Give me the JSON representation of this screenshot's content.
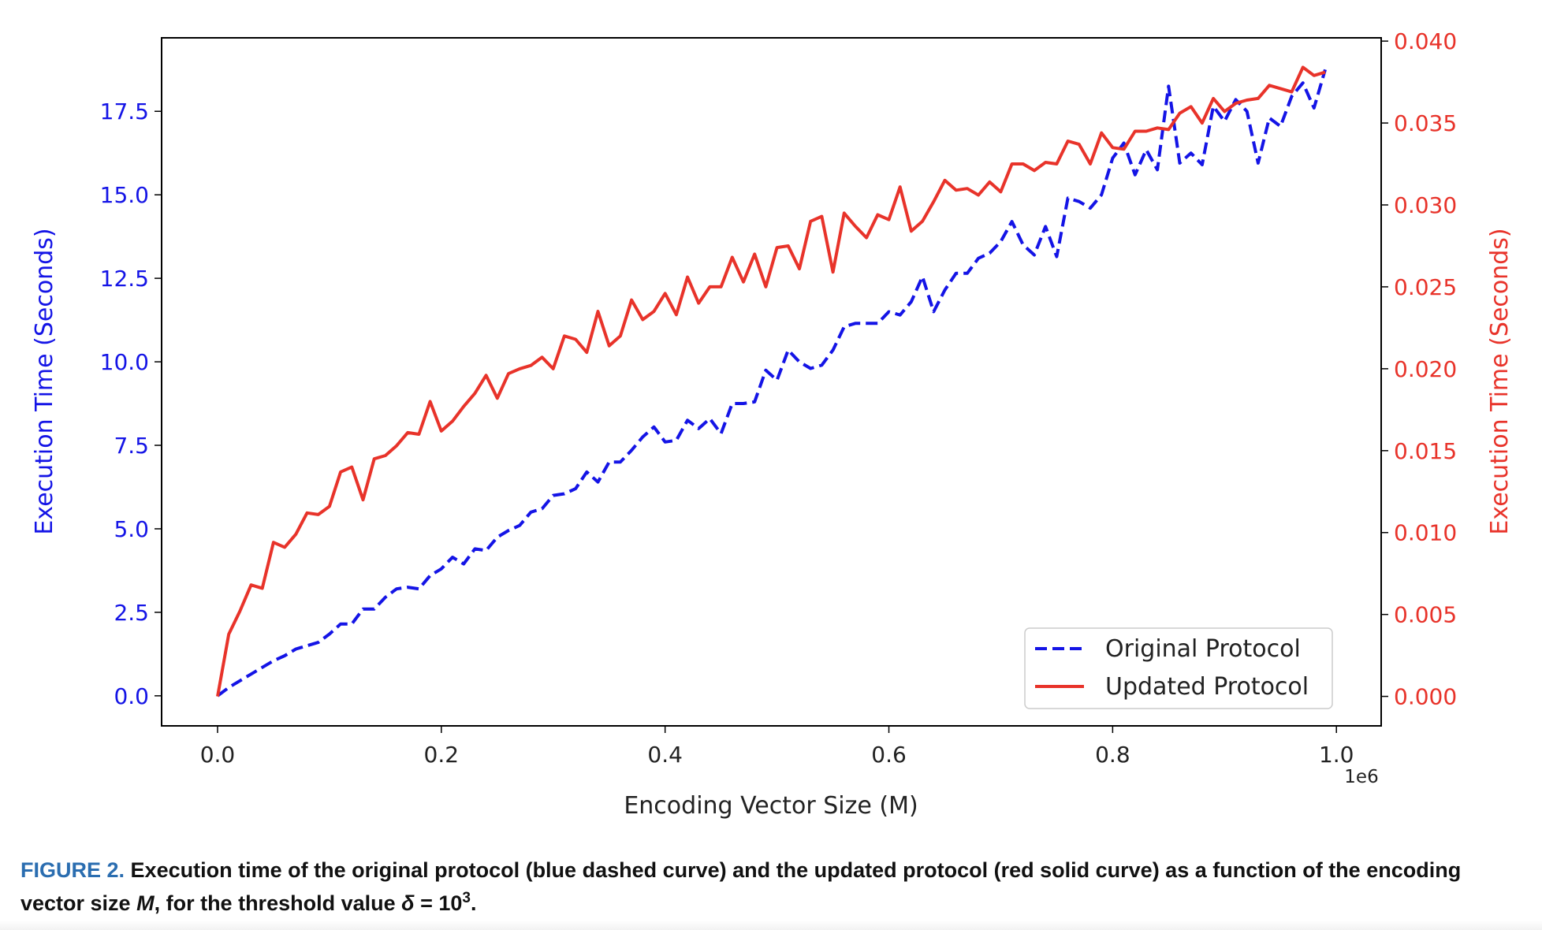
{
  "chart_data": {
    "type": "line",
    "xlabel": "Encoding Vector Size (M)",
    "x_offset_text": "1e6",
    "xlim": [
      -0.05,
      1.04
    ],
    "x_ticks": [
      0.0,
      0.2,
      0.4,
      0.6,
      0.8,
      1.0
    ],
    "x_tick_labels": [
      "0.0",
      "0.2",
      "0.4",
      "0.6",
      "0.8",
      "1.0"
    ],
    "left_axis": {
      "label": "Execution Time (Seconds)",
      "color": "#1414e6",
      "ylim": [
        -0.9,
        19.7
      ],
      "ticks": [
        0.0,
        2.5,
        5.0,
        7.5,
        10.0,
        12.5,
        15.0,
        17.5
      ],
      "tick_labels": [
        "0.0",
        "2.5",
        "5.0",
        "7.5",
        "10.0",
        "12.5",
        "15.0",
        "17.5"
      ]
    },
    "right_axis": {
      "label": "Execution Time (Seconds)",
      "color": "#e8332a",
      "ylim": [
        -0.0018,
        0.0402
      ],
      "ticks": [
        0.0,
        0.005,
        0.01,
        0.015,
        0.02,
        0.025,
        0.03,
        0.035,
        0.04
      ],
      "tick_labels": [
        "0.000",
        "0.005",
        "0.010",
        "0.015",
        "0.020",
        "0.025",
        "0.030",
        "0.035",
        "0.040"
      ]
    },
    "legend_position": "lower-right",
    "grid": false,
    "series": [
      {
        "name": "Original Protocol",
        "axis": "left",
        "color": "#1414e6",
        "style": "dashed",
        "x": [
          0.0,
          0.01,
          0.02,
          0.03,
          0.04,
          0.05,
          0.06,
          0.07,
          0.08,
          0.09,
          0.1,
          0.11,
          0.12,
          0.13,
          0.14,
          0.15,
          0.16,
          0.17,
          0.18,
          0.19,
          0.2,
          0.21,
          0.22,
          0.23,
          0.24,
          0.25,
          0.26,
          0.27,
          0.28,
          0.29,
          0.3,
          0.31,
          0.32,
          0.33,
          0.34,
          0.35,
          0.36,
          0.37,
          0.38,
          0.39,
          0.4,
          0.41,
          0.42,
          0.43,
          0.44,
          0.45,
          0.46,
          0.47,
          0.48,
          0.49,
          0.5,
          0.51,
          0.52,
          0.53,
          0.54,
          0.55,
          0.56,
          0.57,
          0.58,
          0.59,
          0.6,
          0.61,
          0.62,
          0.63,
          0.64,
          0.65,
          0.66,
          0.67,
          0.68,
          0.69,
          0.7,
          0.71,
          0.72,
          0.73,
          0.74,
          0.75,
          0.76,
          0.77,
          0.78,
          0.79,
          0.8,
          0.81,
          0.82,
          0.83,
          0.84,
          0.85,
          0.86,
          0.87,
          0.88,
          0.89,
          0.9,
          0.91,
          0.92,
          0.93,
          0.94,
          0.95,
          0.96,
          0.97,
          0.98,
          0.99
        ],
        "y": [
          0.0,
          0.25,
          0.45,
          0.65,
          0.85,
          1.05,
          1.2,
          1.4,
          1.5,
          1.6,
          1.85,
          2.15,
          2.15,
          2.6,
          2.6,
          2.95,
          3.2,
          3.25,
          3.2,
          3.6,
          3.8,
          4.15,
          3.95,
          4.4,
          4.35,
          4.75,
          4.95,
          5.1,
          5.5,
          5.6,
          6.0,
          6.05,
          6.2,
          6.7,
          6.4,
          7.0,
          7.0,
          7.35,
          7.75,
          8.05,
          7.6,
          7.65,
          8.25,
          8.0,
          8.3,
          7.85,
          8.75,
          8.75,
          8.8,
          9.75,
          9.45,
          10.35,
          10.0,
          9.8,
          9.9,
          10.35,
          11.05,
          11.15,
          11.15,
          11.15,
          11.5,
          11.4,
          11.8,
          12.55,
          11.5,
          12.15,
          12.65,
          12.65,
          13.1,
          13.25,
          13.6,
          14.2,
          13.5,
          13.2,
          14.05,
          13.15,
          14.9,
          14.8,
          14.6,
          15.0,
          16.1,
          16.55,
          15.6,
          16.35,
          15.75,
          18.25,
          15.95,
          16.25,
          15.9,
          17.65,
          17.2,
          17.85,
          17.5,
          15.95,
          17.3,
          17.05,
          17.95,
          18.35,
          17.6,
          18.75
        ]
      },
      {
        "name": "Updated Protocol",
        "axis": "right",
        "color": "#e8332a",
        "style": "solid",
        "x": [
          0.0,
          0.01,
          0.02,
          0.03,
          0.04,
          0.05,
          0.06,
          0.07,
          0.08,
          0.09,
          0.1,
          0.11,
          0.12,
          0.13,
          0.14,
          0.15,
          0.16,
          0.17,
          0.18,
          0.19,
          0.2,
          0.21,
          0.22,
          0.23,
          0.24,
          0.25,
          0.26,
          0.27,
          0.28,
          0.29,
          0.3,
          0.31,
          0.32,
          0.33,
          0.34,
          0.35,
          0.36,
          0.37,
          0.38,
          0.39,
          0.4,
          0.41,
          0.42,
          0.43,
          0.44,
          0.45,
          0.46,
          0.47,
          0.48,
          0.49,
          0.5,
          0.51,
          0.52,
          0.53,
          0.54,
          0.55,
          0.56,
          0.57,
          0.58,
          0.59,
          0.6,
          0.61,
          0.62,
          0.63,
          0.64,
          0.65,
          0.66,
          0.67,
          0.68,
          0.69,
          0.7,
          0.71,
          0.72,
          0.73,
          0.74,
          0.75,
          0.76,
          0.77,
          0.78,
          0.79,
          0.8,
          0.81,
          0.82,
          0.83,
          0.84,
          0.85,
          0.86,
          0.87,
          0.88,
          0.89,
          0.9,
          0.91,
          0.92,
          0.93,
          0.94,
          0.95,
          0.96,
          0.97,
          0.98,
          0.99
        ],
        "y": [
          0.0,
          0.0038,
          0.0052,
          0.0068,
          0.0066,
          0.0094,
          0.0091,
          0.0099,
          0.0112,
          0.0111,
          0.0116,
          0.0137,
          0.014,
          0.012,
          0.0145,
          0.0147,
          0.0153,
          0.0161,
          0.016,
          0.018,
          0.0162,
          0.0168,
          0.0177,
          0.0185,
          0.0196,
          0.0182,
          0.0197,
          0.02,
          0.0202,
          0.0207,
          0.02,
          0.022,
          0.0218,
          0.021,
          0.0235,
          0.0214,
          0.022,
          0.0242,
          0.023,
          0.0235,
          0.0246,
          0.0233,
          0.0256,
          0.024,
          0.025,
          0.025,
          0.0268,
          0.0253,
          0.027,
          0.025,
          0.0274,
          0.0275,
          0.0261,
          0.029,
          0.0293,
          0.0259,
          0.0295,
          0.0287,
          0.028,
          0.0294,
          0.0291,
          0.0311,
          0.0284,
          0.029,
          0.0302,
          0.0315,
          0.0309,
          0.031,
          0.0306,
          0.0314,
          0.0308,
          0.0325,
          0.0325,
          0.0321,
          0.0326,
          0.0325,
          0.0339,
          0.0337,
          0.0325,
          0.0344,
          0.0335,
          0.0334,
          0.0345,
          0.0345,
          0.0347,
          0.0346,
          0.0356,
          0.036,
          0.035,
          0.0365,
          0.0357,
          0.0362,
          0.0364,
          0.0365,
          0.0373,
          0.0371,
          0.0369,
          0.0384,
          0.0379,
          0.0381
        ]
      }
    ]
  },
  "caption": {
    "label": "FIGURE 2.",
    "text_before": "Execution time of the original protocol (blue dashed curve) and the updated protocol (red solid curve) as a function of the encoding vector size ",
    "variable": "M",
    "text_middle": ", for the threshold value ",
    "delta": "δ",
    "equals": " = 10",
    "exponent": "3",
    "period": "."
  }
}
